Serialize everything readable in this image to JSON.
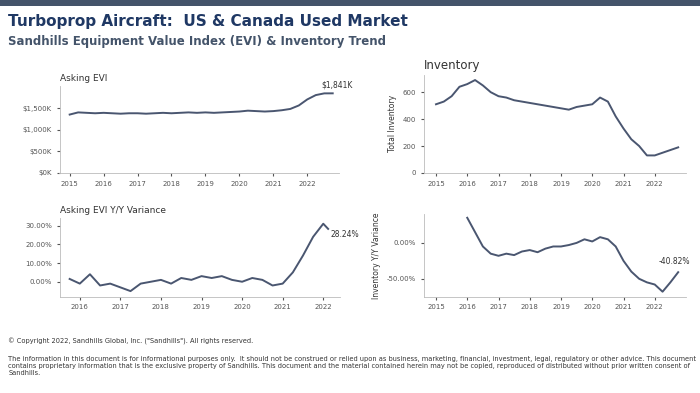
{
  "header": {
    "title": "Turboprop Aircraft:  US & Canada Used Market",
    "subtitle": "Sandhills Equipment Value Index (EVI) & Inventory Trend"
  },
  "footer": {
    "copyright": "© Copyright 2022, Sandhills Global, Inc. (\"Sandhills\"). All rights reserved.",
    "disclaimer": "The information in this document is for informational purposes only.  It should not be construed or relied upon as business, marketing, financial, investment, legal, regulatory or other advice. This document contains proprietary information that is the exclusive property of Sandhills. This document and the material contained herein may not be copied, reproduced of distributed without prior written consent of Sandhills."
  },
  "chart_data": [
    {
      "type": "line",
      "title": "Asking EVI",
      "color": "#4a5670",
      "annotation": "$1,841K",
      "x": [
        2015.0,
        2015.25,
        2015.5,
        2015.75,
        2016.0,
        2016.25,
        2016.5,
        2016.75,
        2017.0,
        2017.25,
        2017.5,
        2017.75,
        2018.0,
        2018.25,
        2018.5,
        2018.75,
        2019.0,
        2019.25,
        2019.5,
        2019.75,
        2020.0,
        2020.25,
        2020.5,
        2020.75,
        2021.0,
        2021.25,
        2021.5,
        2021.75,
        2022.0,
        2022.25,
        2022.5,
        2022.75
      ],
      "values": [
        1350,
        1400,
        1390,
        1380,
        1390,
        1380,
        1370,
        1380,
        1380,
        1370,
        1380,
        1390,
        1380,
        1390,
        1400,
        1390,
        1400,
        1390,
        1400,
        1410,
        1420,
        1440,
        1430,
        1420,
        1430,
        1450,
        1480,
        1560,
        1700,
        1800,
        1840,
        1841
      ],
      "xlim": [
        2014.7,
        2022.95
      ],
      "xticks": [
        2015,
        2016,
        2017,
        2018,
        2019,
        2020,
        2021,
        2022
      ],
      "ylim": [
        0,
        2000
      ],
      "yticks": [
        {
          "value": 0,
          "label": "$0K"
        },
        {
          "value": 500,
          "label": "$500K"
        },
        {
          "value": 1000,
          "label": "$1,000K"
        },
        {
          "value": 1500,
          "label": "$1,500K"
        }
      ],
      "grid": false
    },
    {
      "type": "line",
      "title": "Asking EVI Y/Y Variance",
      "color": "#4a5670",
      "annotation": "28.24%",
      "x": [
        2015.75,
        2016.0,
        2016.25,
        2016.5,
        2016.75,
        2017.0,
        2017.25,
        2017.5,
        2017.75,
        2018.0,
        2018.25,
        2018.5,
        2018.75,
        2019.0,
        2019.25,
        2019.5,
        2019.75,
        2020.0,
        2020.25,
        2020.5,
        2020.75,
        2021.0,
        2021.25,
        2021.5,
        2021.75,
        2022.0,
        2022.12
      ],
      "values": [
        1.5,
        -1,
        4,
        -2,
        -1,
        -3,
        -5,
        -1,
        0,
        1,
        -1,
        2,
        1,
        3,
        2,
        3,
        1,
        0,
        2,
        1,
        -2,
        -1,
        5,
        14,
        24,
        31,
        28.24
      ],
      "xlim": [
        2015.5,
        2022.4
      ],
      "xticks": [
        2016,
        2017,
        2018,
        2019,
        2020,
        2021,
        2022
      ],
      "ylim": [
        -8,
        34
      ],
      "yticks": [
        {
          "value": 0,
          "label": "0.00%"
        },
        {
          "value": 10,
          "label": "10.00%"
        },
        {
          "value": 20,
          "label": "20.00%"
        },
        {
          "value": 30,
          "label": "30.00%"
        }
      ],
      "grid": false
    },
    {
      "type": "line",
      "title": "Inventory",
      "y_label": "Total Inventory",
      "color": "#4a5670",
      "x": [
        2015.0,
        2015.25,
        2015.5,
        2015.75,
        2016.0,
        2016.25,
        2016.5,
        2016.75,
        2017.0,
        2017.25,
        2017.5,
        2017.75,
        2018.0,
        2018.25,
        2018.5,
        2018.75,
        2019.0,
        2019.25,
        2019.5,
        2019.75,
        2020.0,
        2020.25,
        2020.5,
        2020.75,
        2021.0,
        2021.25,
        2021.5,
        2021.75,
        2022.0,
        2022.25,
        2022.5,
        2022.75
      ],
      "values": [
        510,
        530,
        570,
        640,
        660,
        690,
        650,
        600,
        570,
        560,
        540,
        530,
        520,
        510,
        500,
        490,
        480,
        470,
        490,
        500,
        510,
        560,
        530,
        420,
        330,
        250,
        200,
        130,
        130,
        150,
        170,
        190
      ],
      "xlim": [
        2014.6,
        2023.0
      ],
      "xticks": [
        2015,
        2016,
        2017,
        2018,
        2019,
        2020,
        2021,
        2022
      ],
      "ylim": [
        0,
        730
      ],
      "yticks": [
        0,
        200,
        400,
        600
      ],
      "grid": false
    },
    {
      "type": "line",
      "y_label": "Inventory Y/Y Variance",
      "color": "#4a5670",
      "annotation": "-40.82%",
      "x": [
        2016.0,
        2016.25,
        2016.5,
        2016.75,
        2017.0,
        2017.25,
        2017.5,
        2017.75,
        2018.0,
        2018.25,
        2018.5,
        2018.75,
        2019.0,
        2019.25,
        2019.5,
        2019.75,
        2020.0,
        2020.25,
        2020.5,
        2020.75,
        2021.0,
        2021.25,
        2021.5,
        2021.75,
        2022.0,
        2022.25,
        2022.5,
        2022.75
      ],
      "values": [
        35,
        15,
        -5,
        -15,
        -18,
        -15,
        -17,
        -12,
        -10,
        -13,
        -8,
        -5,
        -5,
        -3,
        0,
        5,
        2,
        8,
        5,
        -5,
        -25,
        -40,
        -50,
        -55,
        -58,
        -68,
        -55,
        -40.82
      ],
      "xlim": [
        2014.6,
        2023.0
      ],
      "xticks": [
        2015,
        2016,
        2017,
        2018,
        2019,
        2020,
        2021,
        2022
      ],
      "ylim": [
        -75,
        40
      ],
      "yticks": [
        {
          "value": -50,
          "label": "-50.00%"
        },
        {
          "value": 0,
          "label": "0.00%"
        }
      ],
      "grid": false
    }
  ]
}
